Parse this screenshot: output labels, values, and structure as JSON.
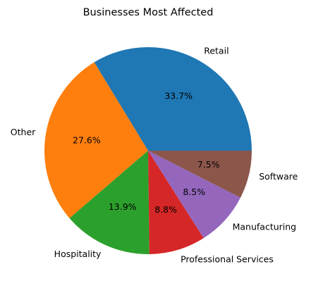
{
  "chart_data": {
    "type": "pie",
    "title": "Businesses Most Affected",
    "start_angle_deg": 0,
    "direction": "counterclockwise",
    "slices": [
      {
        "label": "Retail",
        "value": 33.7,
        "pct_text": "33.7%",
        "color": "#1f77b4"
      },
      {
        "label": "Other",
        "value": 27.6,
        "pct_text": "27.6%",
        "color": "#ff7f0e"
      },
      {
        "label": "Hospitality",
        "value": 13.9,
        "pct_text": "13.9%",
        "color": "#2ca02c"
      },
      {
        "label": "Professional Services",
        "value": 8.8,
        "pct_text": "8.8%",
        "color": "#d62728"
      },
      {
        "label": "Manufacturing",
        "value": 8.5,
        "pct_text": "8.5%",
        "color": "#9467bd"
      },
      {
        "label": "Software",
        "value": 7.5,
        "pct_text": "7.5%",
        "color": "#8c564b"
      }
    ]
  }
}
